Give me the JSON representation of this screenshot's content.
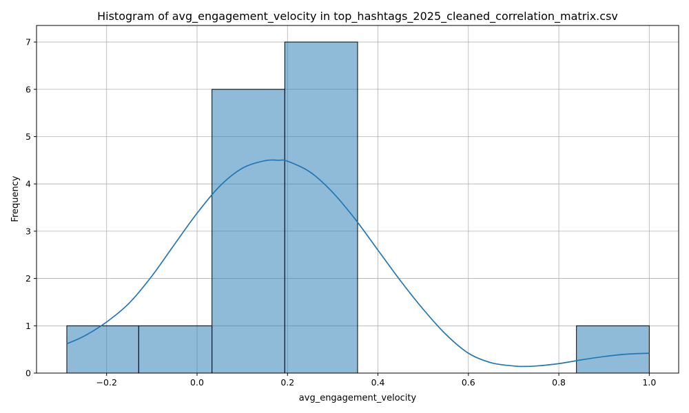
{
  "chart_data": {
    "type": "bar",
    "title": "Histogram of avg_engagement_velocity in top_hashtags_2025_cleaned_correlation_matrix.csv",
    "xlabel": "avg_engagement_velocity",
    "ylabel": "Frequency",
    "xlim": [
      -0.355,
      1.065
    ],
    "ylim": [
      0,
      7.35
    ],
    "grid": true,
    "bar_color": "#1f77b4",
    "bar_opacity": 0.5,
    "bar_edge_color": "#000000",
    "kde_color": "#1f77b4",
    "bins": [
      {
        "x0": -0.288,
        "x1": -0.129,
        "count": 1
      },
      {
        "x0": -0.129,
        "x1": 0.033,
        "count": 1
      },
      {
        "x0": 0.033,
        "x1": 0.194,
        "count": 6
      },
      {
        "x0": 0.194,
        "x1": 0.355,
        "count": 7
      },
      {
        "x0": 0.355,
        "x1": 0.517,
        "count": 0
      },
      {
        "x0": 0.517,
        "x1": 0.678,
        "count": 0
      },
      {
        "x0": 0.678,
        "x1": 0.839,
        "count": 0
      },
      {
        "x0": 0.839,
        "x1": 1.0,
        "count": 1
      }
    ],
    "kde": {
      "x": [
        -0.288,
        -0.25,
        -0.2,
        -0.15,
        -0.1,
        -0.05,
        0.0,
        0.05,
        0.1,
        0.15,
        0.18,
        0.2,
        0.25,
        0.3,
        0.35,
        0.4,
        0.45,
        0.5,
        0.55,
        0.6,
        0.65,
        0.7,
        0.72,
        0.75,
        0.8,
        0.85,
        0.9,
        0.95,
        1.0
      ],
      "y": [
        0.62,
        0.78,
        1.08,
        1.48,
        2.05,
        2.72,
        3.38,
        3.95,
        4.33,
        4.49,
        4.5,
        4.48,
        4.25,
        3.82,
        3.25,
        2.6,
        1.95,
        1.35,
        0.82,
        0.42,
        0.22,
        0.15,
        0.14,
        0.15,
        0.2,
        0.28,
        0.35,
        0.4,
        0.42
      ]
    },
    "x_ticks": [
      -0.2,
      0.0,
      0.2,
      0.4,
      0.6,
      0.8,
      1.0
    ],
    "x_tick_labels": [
      "−0.2",
      "0.0",
      "0.2",
      "0.4",
      "0.6",
      "0.8",
      "1.0"
    ],
    "y_ticks": [
      0,
      1,
      2,
      3,
      4,
      5,
      6,
      7
    ],
    "y_tick_labels": [
      "0",
      "1",
      "2",
      "3",
      "4",
      "5",
      "6",
      "7"
    ]
  }
}
